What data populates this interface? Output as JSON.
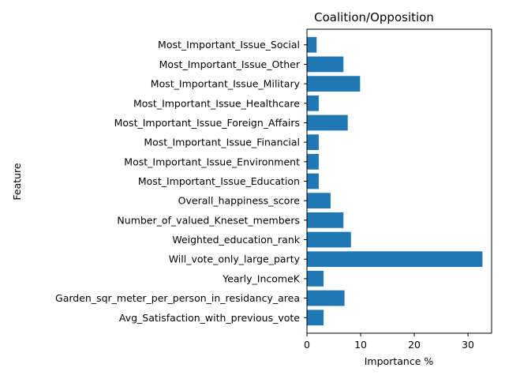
{
  "chart_data": {
    "type": "bar",
    "orientation": "horizontal",
    "title": "Coalition/Opposition",
    "xlabel": "Importance %",
    "ylabel": "Feature",
    "xlim": [
      0,
      34.4
    ],
    "xticks": [
      0,
      10,
      20,
      30
    ],
    "grid": false,
    "bar_color": "#1f77b4",
    "categories": [
      "Avg_Satisfaction_with_previous_vote",
      "Garden_sqr_meter_per_person_in_residancy_area",
      "Yearly_IncomeK",
      "Will_vote_only_large_party",
      "Weighted_education_rank",
      "Number_of_valued_Kneset_members",
      "Overall_happiness_score",
      "Most_Important_Issue_Education",
      "Most_Important_Issue_Environment",
      "Most_Important_Issue_Financial",
      "Most_Important_Issue_Foreign_Affairs",
      "Most_Important_Issue_Healthcare",
      "Most_Important_Issue_Military",
      "Most_Important_Issue_Other",
      "Most_Important_Issue_Social"
    ],
    "values": [
      3.1,
      7.0,
      3.1,
      32.7,
      8.2,
      6.8,
      4.4,
      2.2,
      2.2,
      2.2,
      7.6,
      2.2,
      9.9,
      6.8,
      1.8
    ]
  }
}
